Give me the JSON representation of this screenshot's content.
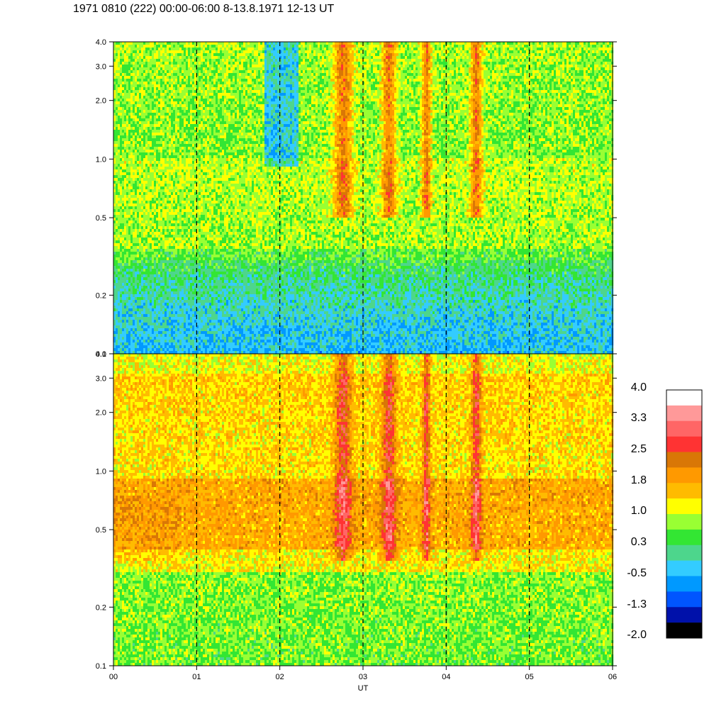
{
  "title": "1971 0810 (222) 00:00-06:00 8-13.8.1971  12-13 UT",
  "chart_data": [
    {
      "type": "heatmap",
      "panel": "upper",
      "x": {
        "label": "UT",
        "range": [
          0,
          6
        ],
        "ticks": [
          0,
          1,
          2,
          3,
          4,
          5,
          6
        ],
        "tick_labels": [
          "00",
          "01",
          "02",
          "03",
          "04",
          "05",
          "06"
        ],
        "dashed_gridlines": [
          1,
          2,
          3,
          4,
          5
        ]
      },
      "y": {
        "scale": "log",
        "range": [
          0.1,
          4.0
        ],
        "ticks": [
          0.1,
          0.2,
          0.5,
          1.0,
          2.0,
          3.0,
          4.0
        ],
        "tick_labels": [
          "0.1",
          "0.2",
          "0.5",
          "1.0",
          "2.0",
          "3.0",
          "4.0"
        ]
      },
      "intensity_description": "mostly 0.3 to 1.0; low values (-0.5 to -1.3) near 0.1-0.3 and at 01:50-02:10 around 1-2.5; elevated (1.8-2.5) bursts near 02:40-02:50, 03:15-03:25, 03:45, 04:20-04:25"
    },
    {
      "type": "heatmap",
      "panel": "lower",
      "x": {
        "label": "UT",
        "range": [
          0,
          6
        ],
        "ticks": [
          0,
          1,
          2,
          3,
          4,
          5,
          6
        ],
        "tick_labels": [
          "00",
          "01",
          "02",
          "03",
          "04",
          "05",
          "06"
        ],
        "dashed_gridlines": [
          1,
          2,
          3,
          4,
          5
        ]
      },
      "y": {
        "scale": "log",
        "range": [
          0.1,
          4.0
        ],
        "ticks": [
          0.1,
          0.2,
          0.5,
          1.0,
          2.0,
          3.0,
          4.0
        ],
        "tick_labels": [
          "0.1",
          "0.2",
          "0.5",
          "1.0",
          "2.0",
          "3.0",
          "4.0"
        ]
      },
      "intensity_description": "mostly 1.0 to 1.8; highs (2.5-3.3) near 02:40-02:50 and 03:20-03:30 around 0.5-0.9; values 0.3-1.0 below 0.3"
    }
  ],
  "colorbar": {
    "labels": [
      "4.0",
      "3.3",
      "2.5",
      "1.8",
      "1.0",
      "0.3",
      "-0.5",
      "-1.3",
      "-2.0"
    ],
    "colors_top_to_bottom": [
      "#ffffff",
      "#ff9999",
      "#ff6666",
      "#ff3333",
      "#d97706",
      "#ff9900",
      "#ffbb00",
      "#ffff00",
      "#99ff33",
      "#33e633",
      "#4dd68c",
      "#33ccff",
      "#0099ff",
      "#0055ff",
      "#0011aa",
      "#000000"
    ]
  }
}
